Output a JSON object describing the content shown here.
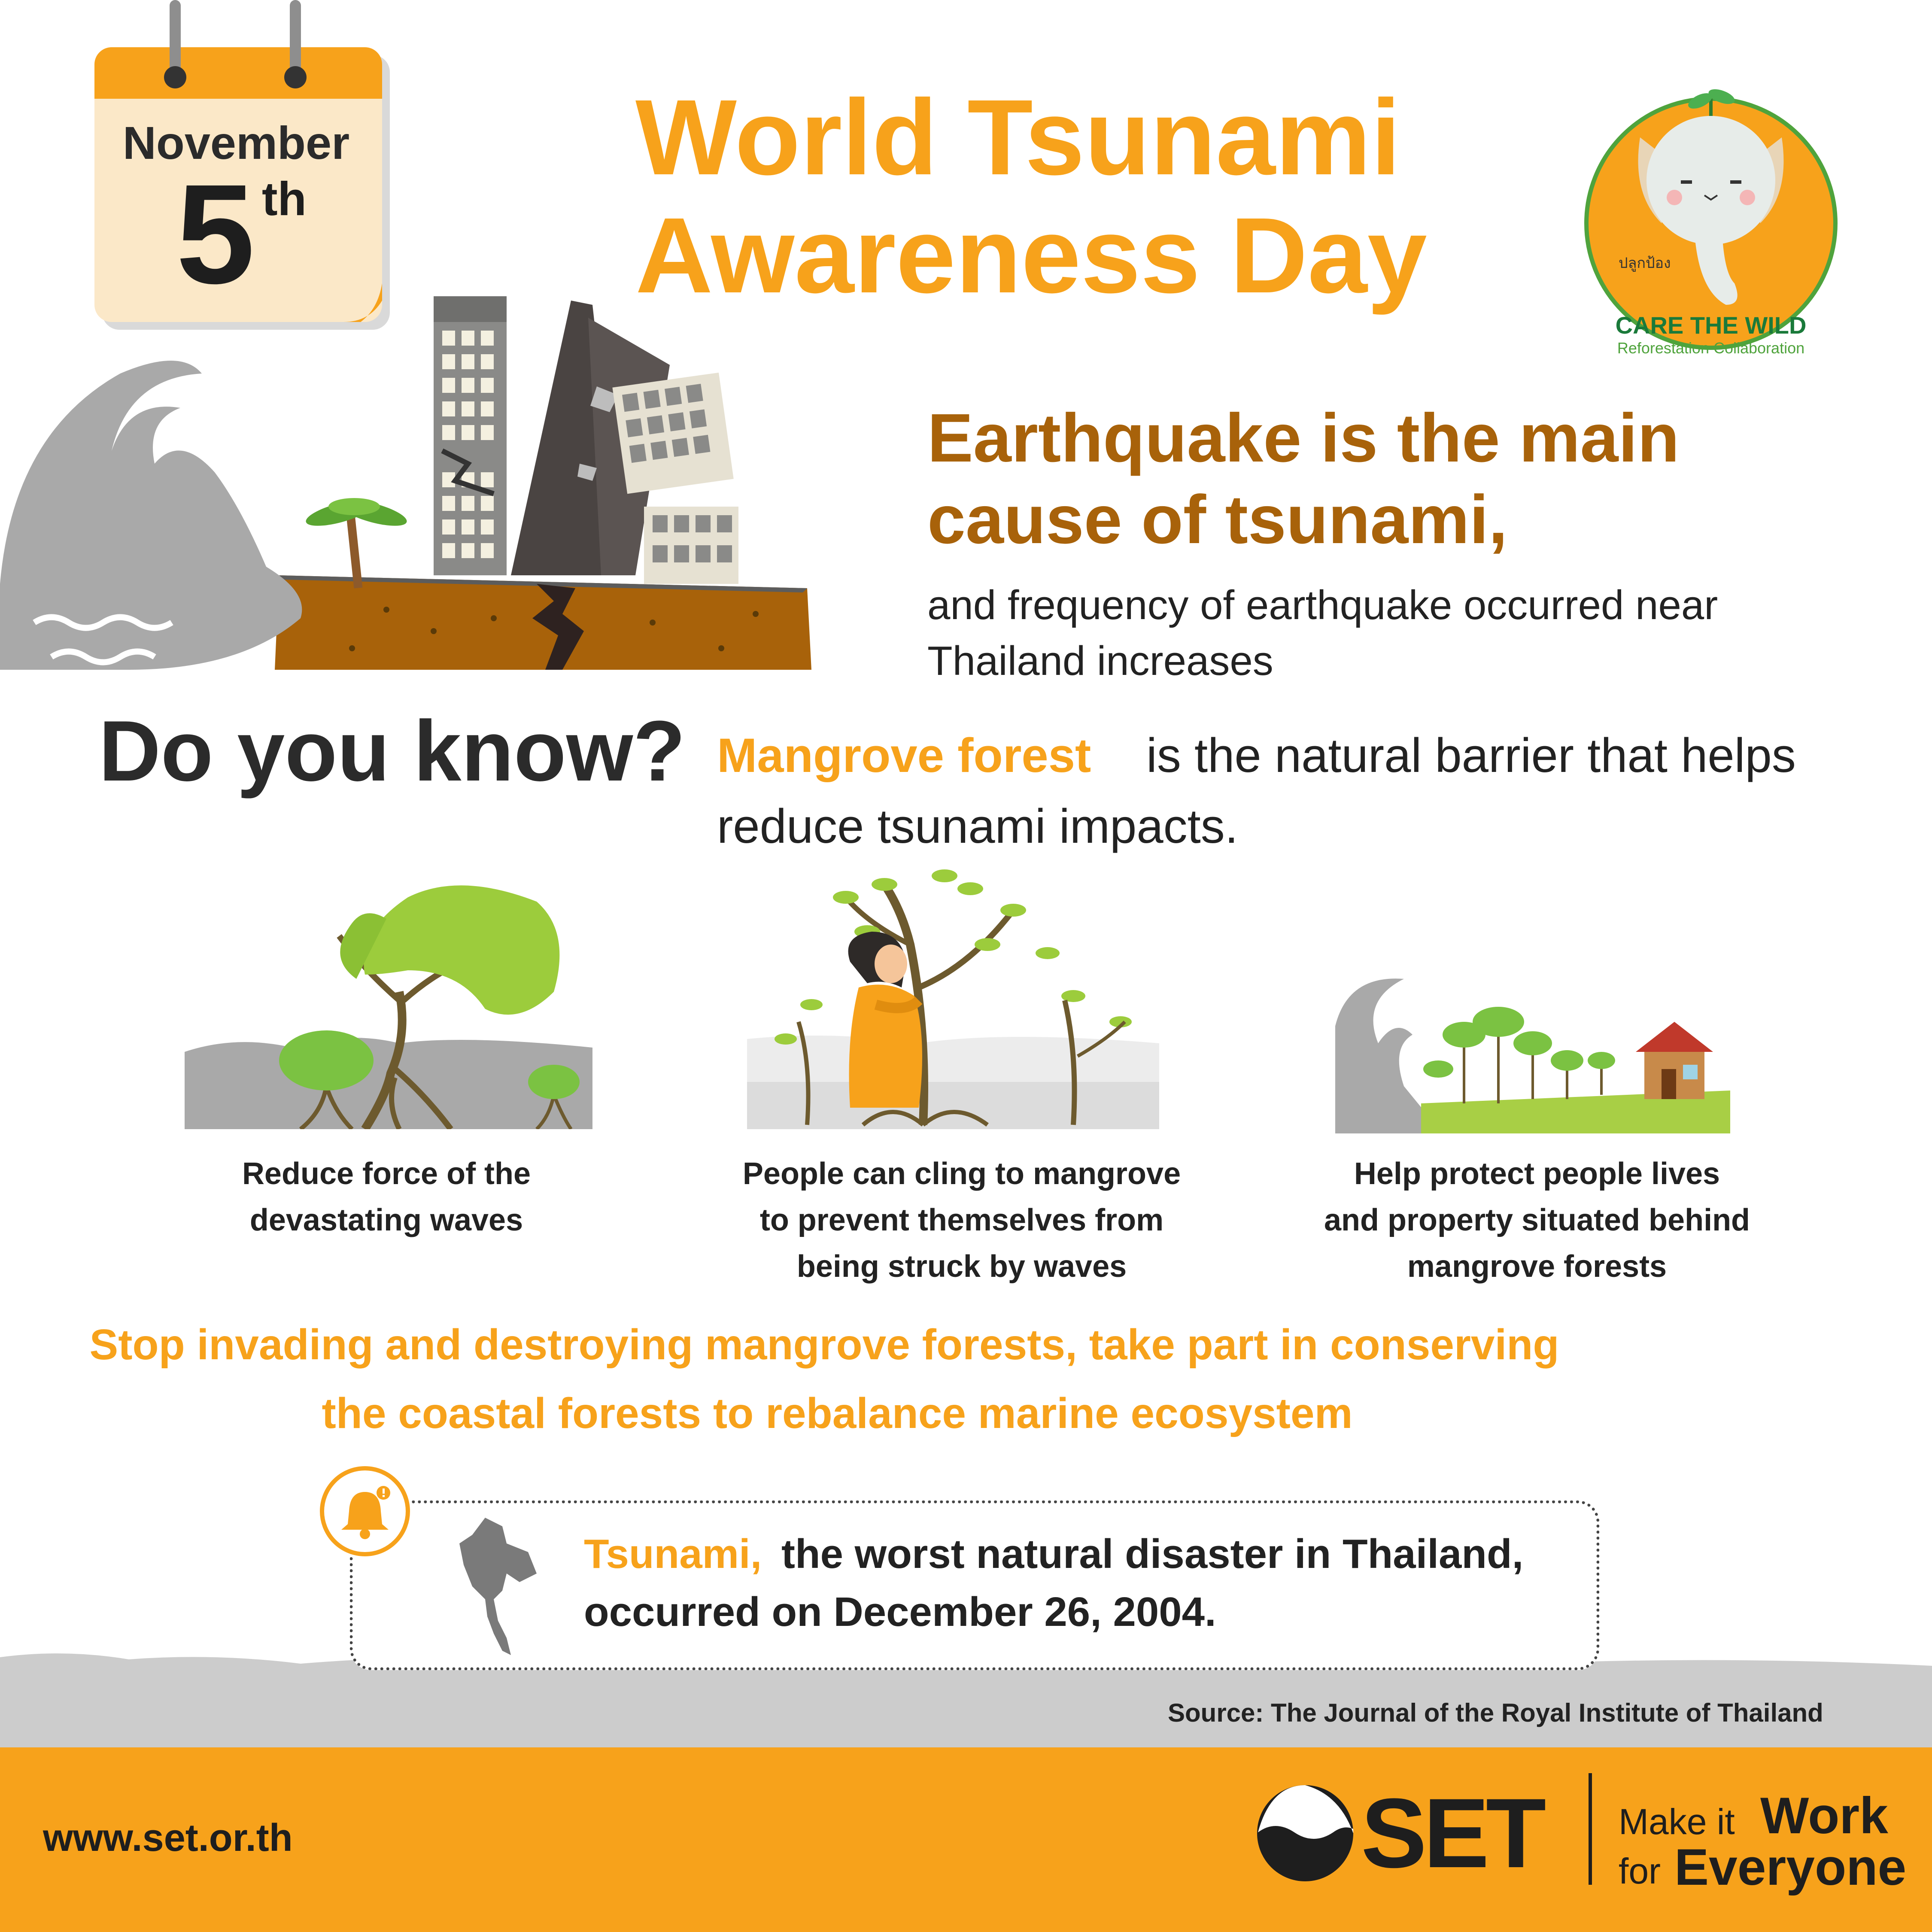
{
  "calendar": {
    "month": "November",
    "day": "5",
    "suffix": "th"
  },
  "title": {
    "line1": "World Tsunami",
    "line2": "Awareness Day"
  },
  "logo": {
    "name": "CARE THE WILD",
    "subtitle": "Reforestation Collaboration",
    "thai_label": "ปลูกป้อง"
  },
  "earthquake": {
    "headline_line1": "Earthquake is the main",
    "headline_line2": "cause of tsunami,",
    "body_line1": "and frequency of earthquake occurred near",
    "body_line2": "Thailand increases"
  },
  "do_you_know": {
    "heading": "Do you know?",
    "highlight": "Mangrove forest",
    "rest_line1": "is the natural barrier that helps",
    "line2": "reduce tsunami impacts."
  },
  "benefits": [
    {
      "icon": "mangrove-roots-icon",
      "line1": "Reduce force of the",
      "line2": "devastating waves",
      "line3": ""
    },
    {
      "icon": "person-cling-tree-icon",
      "line1": "People can cling to mangrove",
      "line2": "to prevent themselves from",
      "line3": "being struck by waves"
    },
    {
      "icon": "house-protected-icon",
      "line1": "Help protect people lives",
      "line2": "and property situated behind",
      "line3": "mangrove forests"
    }
  ],
  "call_to_action": {
    "line1": "Stop invading and destroying mangrove forests, take part in conserving",
    "line2": "the coastal forests to rebalance marine ecosystem"
  },
  "notice": {
    "icon": "bell-icon",
    "map_icon": "thailand-map-icon",
    "highlight": "Tsunami,",
    "rest_line1": "the worst natural disaster in Thailand,",
    "line2": "occurred on December 26, 2004."
  },
  "source": "Source: The Journal of the Royal Institute of Thailand",
  "footer": {
    "website": "www.set.or.th",
    "brand": "SET",
    "tagline_a": "Make it",
    "tagline_b": "Work",
    "tagline_c": "for",
    "tagline_d": "Everyone"
  },
  "colors": {
    "accent": "#f7a21b",
    "brown_heading": "#a8620a",
    "gray_wave": "#a9a9a9",
    "leaf_green": "#9ccc3c",
    "logo_green": "#1a7a3a",
    "text_dark": "#222222"
  }
}
